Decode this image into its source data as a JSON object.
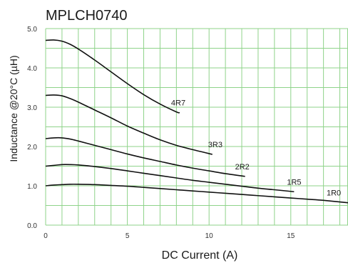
{
  "chart_data": {
    "type": "line",
    "title": "MPLCH0740",
    "xlabel": "DC Current (A)",
    "ylabel": "Inductance @20°C (µH)",
    "xlim": [
      0,
      18.5
    ],
    "ylim": [
      0,
      5.0
    ],
    "xticks": [
      0,
      5,
      10,
      15
    ],
    "xtick_labels": [
      "0",
      "5",
      "10",
      "15"
    ],
    "yticks": [
      0.0,
      1.0,
      2.0,
      3.0,
      4.0,
      5.0
    ],
    "ytick_labels": [
      "0.0",
      "1.0",
      "2.0",
      "3.0",
      "4.0",
      "5.0"
    ],
    "grid": true,
    "colors": {
      "grid": "#8fd38a",
      "curves": "#111111"
    },
    "series": [
      {
        "name": "4R7",
        "x": [
          0,
          0.5,
          1,
          1.5,
          2,
          3,
          4,
          5,
          6,
          7,
          8,
          8.2
        ],
        "y": [
          4.7,
          4.71,
          4.68,
          4.6,
          4.48,
          4.2,
          3.9,
          3.6,
          3.32,
          3.08,
          2.88,
          2.86
        ]
      },
      {
        "name": "3R3",
        "x": [
          0,
          0.5,
          1,
          1.5,
          2,
          3,
          4,
          5,
          6,
          7,
          8,
          9,
          10.2
        ],
        "y": [
          3.3,
          3.31,
          3.29,
          3.22,
          3.13,
          2.93,
          2.73,
          2.52,
          2.34,
          2.17,
          2.03,
          1.92,
          1.8
        ]
      },
      {
        "name": "2R2",
        "x": [
          0,
          0.5,
          1,
          1.5,
          2,
          3,
          4,
          5,
          6,
          7,
          8,
          9,
          10,
          11,
          12.2
        ],
        "y": [
          2.2,
          2.22,
          2.22,
          2.19,
          2.14,
          2.03,
          1.92,
          1.81,
          1.71,
          1.62,
          1.53,
          1.45,
          1.38,
          1.31,
          1.24
        ]
      },
      {
        "name": "1R5",
        "x": [
          0,
          0.5,
          1,
          1.5,
          2,
          3,
          4,
          5,
          6,
          7,
          8,
          9,
          10,
          11,
          12,
          13,
          14,
          15.2
        ],
        "y": [
          1.5,
          1.52,
          1.54,
          1.54,
          1.53,
          1.49,
          1.44,
          1.38,
          1.32,
          1.26,
          1.2,
          1.14,
          1.09,
          1.04,
          0.99,
          0.94,
          0.9,
          0.85
        ]
      },
      {
        "name": "1R0",
        "x": [
          0,
          0.5,
          1,
          1.5,
          2,
          3,
          4,
          5,
          6,
          7,
          8,
          9,
          10,
          11,
          12,
          13,
          14,
          15,
          16,
          17,
          18.5
        ],
        "y": [
          1.0,
          1.02,
          1.03,
          1.04,
          1.04,
          1.03,
          1.01,
          0.99,
          0.96,
          0.93,
          0.9,
          0.87,
          0.84,
          0.81,
          0.78,
          0.75,
          0.72,
          0.69,
          0.66,
          0.63,
          0.57
        ]
      }
    ]
  }
}
